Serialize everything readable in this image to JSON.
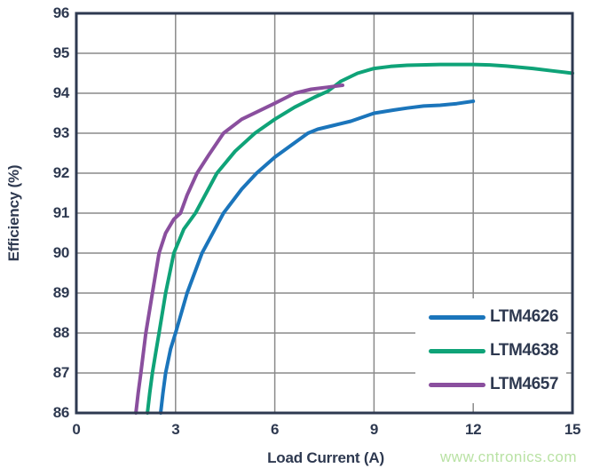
{
  "chart_data": {
    "type": "line",
    "title": "",
    "xlabel": "Load Current (A)",
    "ylabel": "Efficiency (%)",
    "xlim": [
      0,
      15
    ],
    "ylim": [
      86,
      96
    ],
    "x_ticks": [
      0,
      3,
      6,
      9,
      12,
      15
    ],
    "y_ticks": [
      86,
      87,
      88,
      89,
      90,
      91,
      92,
      93,
      94,
      95,
      96
    ],
    "grid": true,
    "legend_position": "lower-right",
    "series": [
      {
        "name": "LTM4626",
        "color": "#1b75bb",
        "points": [
          [
            2.55,
            86
          ],
          [
            2.62,
            86.5
          ],
          [
            2.7,
            87
          ],
          [
            2.85,
            87.6
          ],
          [
            3.0,
            88
          ],
          [
            3.35,
            89
          ],
          [
            3.8,
            90
          ],
          [
            4.45,
            91
          ],
          [
            5.0,
            91.6
          ],
          [
            5.45,
            92
          ],
          [
            6.0,
            92.4
          ],
          [
            6.5,
            92.7
          ],
          [
            7.0,
            93.0
          ],
          [
            7.3,
            93.1
          ],
          [
            7.8,
            93.2
          ],
          [
            8.3,
            93.3
          ],
          [
            9.0,
            93.5
          ],
          [
            9.6,
            93.58
          ],
          [
            10.0,
            93.63
          ],
          [
            10.5,
            93.68
          ],
          [
            11.0,
            93.7
          ],
          [
            11.5,
            93.74
          ],
          [
            12.0,
            93.8
          ]
        ]
      },
      {
        "name": "LTM4638",
        "color": "#0fa378",
        "points": [
          [
            2.15,
            86
          ],
          [
            2.22,
            86.5
          ],
          [
            2.3,
            87
          ],
          [
            2.4,
            87.5
          ],
          [
            2.5,
            88
          ],
          [
            2.7,
            89
          ],
          [
            2.95,
            90
          ],
          [
            3.25,
            90.6
          ],
          [
            3.6,
            91
          ],
          [
            4.25,
            92
          ],
          [
            4.8,
            92.55
          ],
          [
            5.4,
            93
          ],
          [
            6.0,
            93.35
          ],
          [
            6.6,
            93.65
          ],
          [
            7.2,
            93.9
          ],
          [
            7.6,
            94.05
          ],
          [
            8.0,
            94.3
          ],
          [
            8.5,
            94.5
          ],
          [
            9.0,
            94.62
          ],
          [
            9.5,
            94.67
          ],
          [
            10.0,
            94.7
          ],
          [
            11.0,
            94.72
          ],
          [
            12.0,
            94.72
          ],
          [
            12.5,
            94.71
          ],
          [
            13.0,
            94.68
          ],
          [
            13.8,
            94.62
          ],
          [
            14.4,
            94.56
          ],
          [
            15.0,
            94.5
          ]
        ]
      },
      {
        "name": "LTM4657",
        "color": "#8a4f9e",
        "points": [
          [
            1.8,
            86
          ],
          [
            1.87,
            86.5
          ],
          [
            1.95,
            87
          ],
          [
            2.1,
            88
          ],
          [
            2.3,
            89
          ],
          [
            2.5,
            90
          ],
          [
            2.7,
            90.5
          ],
          [
            2.95,
            90.85
          ],
          [
            3.15,
            91
          ],
          [
            3.35,
            91.45
          ],
          [
            3.65,
            92
          ],
          [
            4.0,
            92.45
          ],
          [
            4.45,
            93
          ],
          [
            5.0,
            93.35
          ],
          [
            5.5,
            93.55
          ],
          [
            6.0,
            93.75
          ],
          [
            6.6,
            94.0
          ],
          [
            7.1,
            94.1
          ],
          [
            7.6,
            94.15
          ],
          [
            8.05,
            94.2
          ]
        ]
      }
    ]
  },
  "watermark": {
    "text": "www.cntronics.com",
    "color": "#b9e2a4"
  },
  "style": {
    "frame_color": "#2e3950",
    "grid_color": "#8a8a8a",
    "text_color": "#2e3950",
    "background": "#ffffff"
  }
}
